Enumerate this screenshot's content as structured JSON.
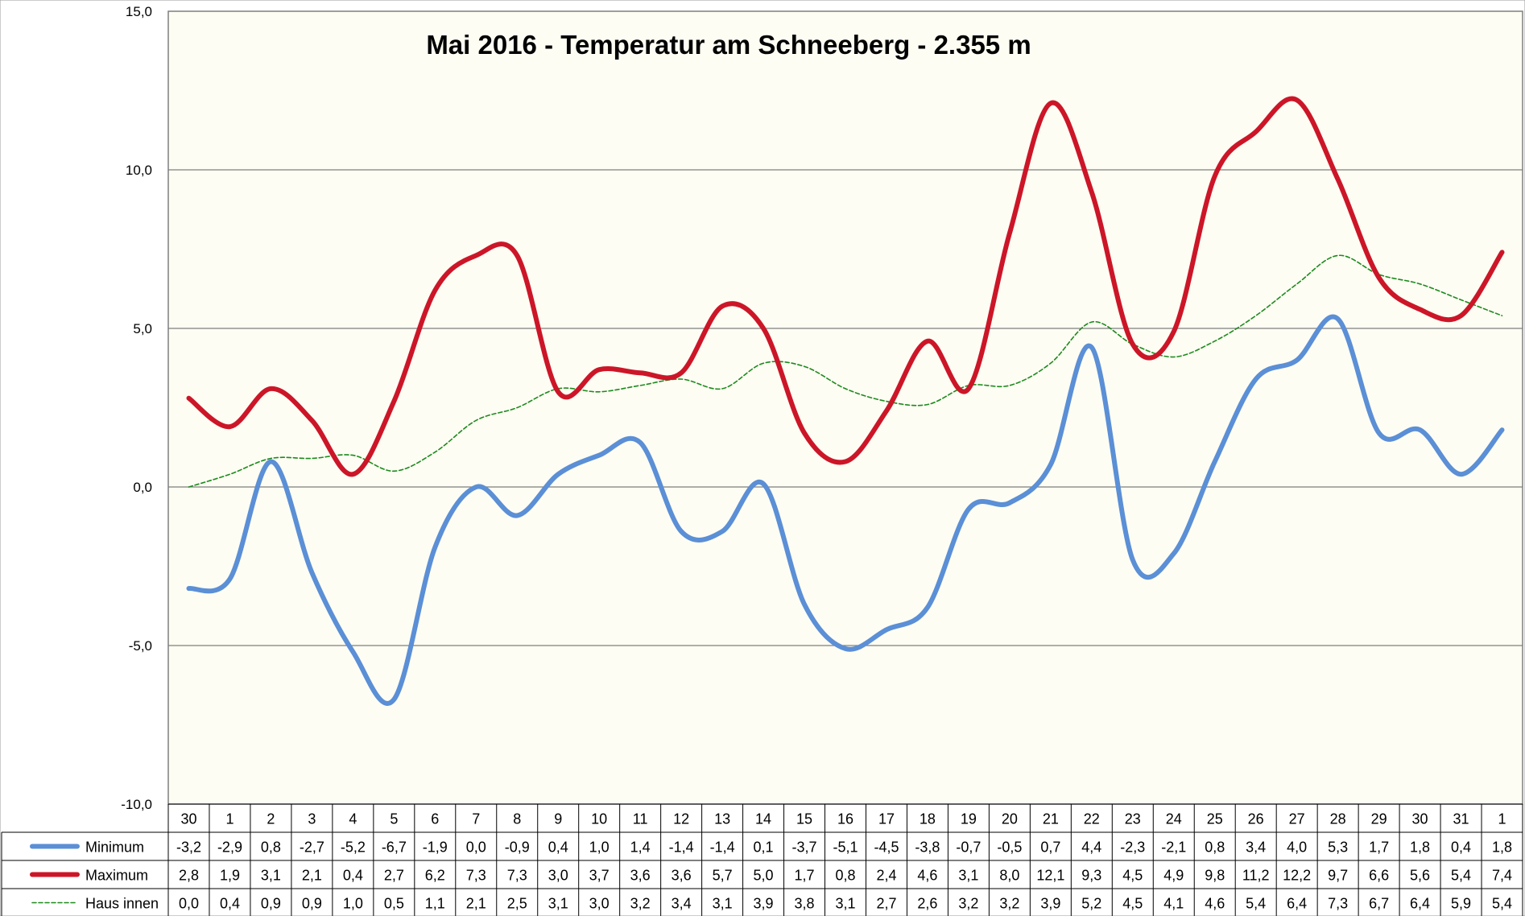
{
  "chart_data": {
    "type": "line",
    "title": "Mai 2016 - Temperatur am Schneeberg - 2.355 m",
    "xlabel": "",
    "ylabel": "",
    "ylim": [
      -10,
      15
    ],
    "yticks": [
      15,
      10,
      5,
      0,
      -5,
      -10
    ],
    "ytick_labels": [
      "15,0",
      "10,0",
      "5,0",
      "0,0",
      "-5,0",
      "-10,0"
    ],
    "grid": true,
    "legend": "data-table-left",
    "categories": [
      "30",
      "1",
      "2",
      "3",
      "4",
      "5",
      "6",
      "7",
      "8",
      "9",
      "10",
      "11",
      "12",
      "13",
      "14",
      "15",
      "16",
      "17",
      "18",
      "19",
      "20",
      "21",
      "22",
      "23",
      "24",
      "25",
      "26",
      "27",
      "28",
      "29",
      "30",
      "31",
      "1"
    ],
    "series": [
      {
        "name": "Minimum",
        "color": "#5b8fd6",
        "style": "solid-thick",
        "values": [
          -3.2,
          -2.9,
          0.8,
          -2.7,
          -5.2,
          -6.7,
          -1.9,
          0.0,
          -0.9,
          0.4,
          1.0,
          1.4,
          -1.4,
          -1.4,
          0.1,
          -3.7,
          -5.1,
          -4.5,
          -3.8,
          -0.7,
          -0.5,
          0.7,
          4.4,
          -2.3,
          -2.1,
          0.8,
          3.4,
          4.0,
          5.3,
          1.7,
          1.8,
          0.4,
          1.8
        ],
        "labels": [
          "-3,2",
          "-2,9",
          "0,8",
          "-2,7",
          "-5,2",
          "-6,7",
          "-1,9",
          "0,0",
          "-0,9",
          "0,4",
          "1,0",
          "1,4",
          "-1,4",
          "-1,4",
          "0,1",
          "-3,7",
          "-5,1",
          "-4,5",
          "-3,8",
          "-0,7",
          "-0,5",
          "0,7",
          "4,4",
          "-2,3",
          "-2,1",
          "0,8",
          "3,4",
          "4,0",
          "5,3",
          "1,7",
          "1,8",
          "0,4",
          "1,8"
        ]
      },
      {
        "name": "Maximum",
        "color": "#cc1628",
        "style": "solid-thick",
        "values": [
          2.8,
          1.9,
          3.1,
          2.1,
          0.4,
          2.7,
          6.2,
          7.3,
          7.3,
          3.0,
          3.7,
          3.6,
          3.6,
          5.7,
          5.0,
          1.7,
          0.8,
          2.4,
          4.6,
          3.1,
          8.0,
          12.1,
          9.3,
          4.5,
          4.9,
          9.8,
          11.2,
          12.2,
          9.7,
          6.6,
          5.6,
          5.4,
          7.4
        ],
        "labels": [
          "2,8",
          "1,9",
          "3,1",
          "2,1",
          "0,4",
          "2,7",
          "6,2",
          "7,3",
          "7,3",
          "3,0",
          "3,7",
          "3,6",
          "3,6",
          "5,7",
          "5,0",
          "1,7",
          "0,8",
          "2,4",
          "4,6",
          "3,1",
          "8,0",
          "12,1",
          "9,3",
          "4,5",
          "4,9",
          "9,8",
          "11,2",
          "12,2",
          "9,7",
          "6,6",
          "5,6",
          "5,4",
          "7,4"
        ]
      },
      {
        "name": "Haus innen",
        "color": "#1e8a1e",
        "style": "dashed-thin",
        "values": [
          0.0,
          0.4,
          0.9,
          0.9,
          1.0,
          0.5,
          1.1,
          2.1,
          2.5,
          3.1,
          3.0,
          3.2,
          3.4,
          3.1,
          3.9,
          3.8,
          3.1,
          2.7,
          2.6,
          3.2,
          3.2,
          3.9,
          5.2,
          4.5,
          4.1,
          4.6,
          5.4,
          6.4,
          7.3,
          6.7,
          6.4,
          5.9,
          5.4
        ],
        "labels": [
          "0,0",
          "0,4",
          "0,9",
          "0,9",
          "1,0",
          "0,5",
          "1,1",
          "2,1",
          "2,5",
          "3,1",
          "3,0",
          "3,2",
          "3,4",
          "3,1",
          "3,9",
          "3,8",
          "3,1",
          "2,7",
          "2,6",
          "3,2",
          "3,2",
          "3,9",
          "5,2",
          "4,5",
          "4,1",
          "4,6",
          "5,4",
          "6,4",
          "7,3",
          "6,7",
          "6,4",
          "5,9",
          "5,4"
        ]
      }
    ],
    "colors": {
      "plot_background": "#fdfdf3",
      "gridline": "#7f7f7f",
      "border": "#7f7f7f"
    }
  }
}
